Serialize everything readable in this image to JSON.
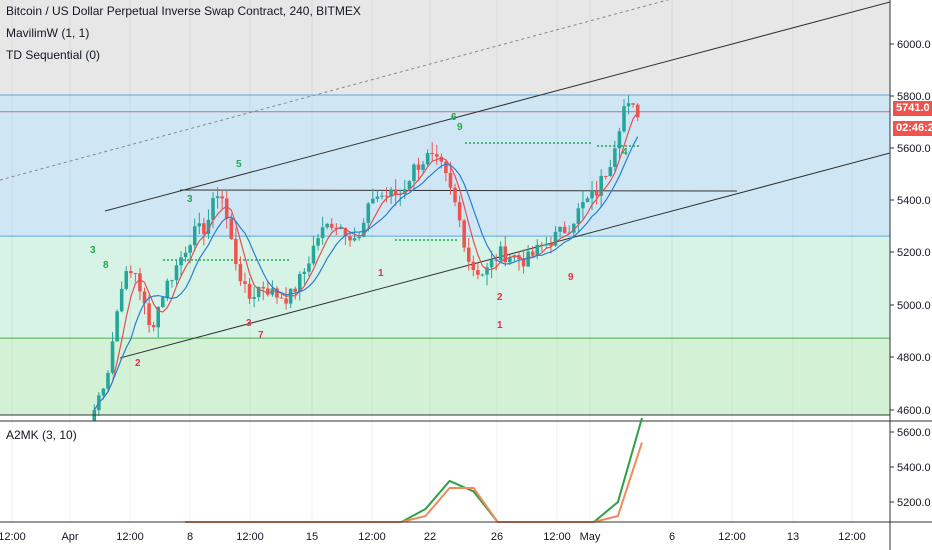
{
  "legend": {
    "main": "Bitcoin / US Dollar Perpetual Inverse Swap Contract, 240, BITMEX",
    "ind1": "MavilimW (1, 1)",
    "ind2": "TD Sequential (0)",
    "osc": "A2MK (3, 10)"
  },
  "labels": {
    "last_price": "5741.0",
    "countdown": "02:46:23"
  },
  "colors": {
    "up": "#26a69a",
    "down": "#ef5350",
    "blue_zone": "#cfe7f5",
    "green_zone": "#d6f3e6",
    "green_zone2": "#d3f1d5",
    "grey_zone": "#e7e7e7",
    "td_up": "#22a84a",
    "td_down": "#e5304b",
    "ma_blue": "#2a7fd4",
    "ma_red": "#e0505a",
    "osc_green": "#2ea043",
    "osc_orange": "#f08a5d",
    "price_label": "#ef5350"
  },
  "chart_data": [
    {
      "type": "candlestick",
      "title": "Bitcoin / US Dollar Perpetual Inverse Swap Contract, 240, BITMEX",
      "ylim": [
        4570,
        6180
      ],
      "y_ticks": [
        "6000.0",
        "5800.0",
        "5600.0",
        "5400.0",
        "5200.0",
        "5000.0",
        "4800.0",
        "4600.0"
      ],
      "x_ticks": [
        "12:00",
        "Apr",
        "12:00",
        "8",
        "12:00",
        "15",
        "12:00",
        "22",
        "26",
        "12:00",
        "May",
        "6",
        "12:00",
        "13",
        "12:00"
      ],
      "close_path": [
        4600,
        4760,
        5100,
        5130,
        4900,
        5060,
        5160,
        5270,
        5300,
        5460,
        5200,
        5020,
        5080,
        5040,
        5030,
        5120,
        5260,
        5320,
        5290,
        5250,
        5420,
        5420,
        5430,
        5530,
        5570,
        5520,
        5370,
        5150,
        5120,
        5200,
        5190,
        5170,
        5220,
        5260,
        5300,
        5380,
        5430,
        5550,
        5760,
        5741
      ],
      "zones": [
        5805,
        5265,
        4875
      ],
      "horizontal_level": 5741.0,
      "td_sequential_up_counts": [
        "3",
        "8",
        "5",
        "3",
        "6",
        "9",
        "4"
      ],
      "td_sequential_down_counts": [
        "2",
        "3",
        "7",
        "1",
        "2",
        "1",
        "9"
      ]
    },
    {
      "type": "line",
      "title": "A2MK (3, 10)",
      "ylim": [
        5100,
        5680
      ],
      "y_ticks": [
        "5600.0",
        "5400.0",
        "5200.0"
      ],
      "series": [
        {
          "name": "",
          "values": [
            5140,
            5200,
            5250,
            5140,
            5100,
            5120,
            5170,
            5220,
            5260,
            5300,
            5380,
            5460,
            5430,
            5320,
            5250,
            5220,
            5200,
            5280,
            5400,
            5640
          ]
        },
        {
          "name": "",
          "values": [
            5120,
            5180,
            5240,
            5160,
            5100,
            5110,
            5150,
            5200,
            5240,
            5290,
            5360,
            5440,
            5440,
            5340,
            5260,
            5220,
            5190,
            5250,
            5360,
            5570
          ]
        }
      ]
    }
  ]
}
